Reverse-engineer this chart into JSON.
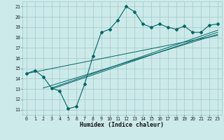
{
  "xlabel": "Humidex (Indice chaleur)",
  "xlim": [
    -0.5,
    23.5
  ],
  "ylim": [
    10.5,
    21.5
  ],
  "yticks": [
    11,
    12,
    13,
    14,
    15,
    16,
    17,
    18,
    19,
    20,
    21
  ],
  "xticks": [
    0,
    1,
    2,
    3,
    4,
    5,
    6,
    7,
    8,
    9,
    10,
    11,
    12,
    13,
    14,
    15,
    16,
    17,
    18,
    19,
    20,
    21,
    22,
    23
  ],
  "bg_color": "#cdeaea",
  "grid_color": "#a0c8c8",
  "line_color": "#006666",
  "jagged_x": [
    0,
    1,
    2,
    3,
    4,
    5,
    6,
    7,
    8,
    9,
    10,
    11,
    12,
    13,
    14,
    15,
    16,
    17,
    18,
    19,
    20,
    21,
    22,
    23
  ],
  "jagged_y": [
    14.5,
    14.8,
    14.2,
    13.1,
    12.8,
    11.1,
    11.3,
    13.5,
    16.2,
    18.5,
    18.8,
    19.7,
    21.0,
    20.5,
    19.3,
    19.0,
    19.3,
    19.0,
    18.8,
    19.1,
    18.5,
    18.5,
    19.2,
    19.3
  ],
  "line1_x": [
    0,
    23
  ],
  "line1_y": [
    14.5,
    18.2
  ],
  "line2_x": [
    2,
    23
  ],
  "line2_y": [
    13.1,
    18.3
  ],
  "line3_x": [
    3,
    23
  ],
  "line3_y": [
    13.0,
    18.5
  ],
  "line4_x": [
    3,
    23
  ],
  "line4_y": [
    13.1,
    18.7
  ]
}
